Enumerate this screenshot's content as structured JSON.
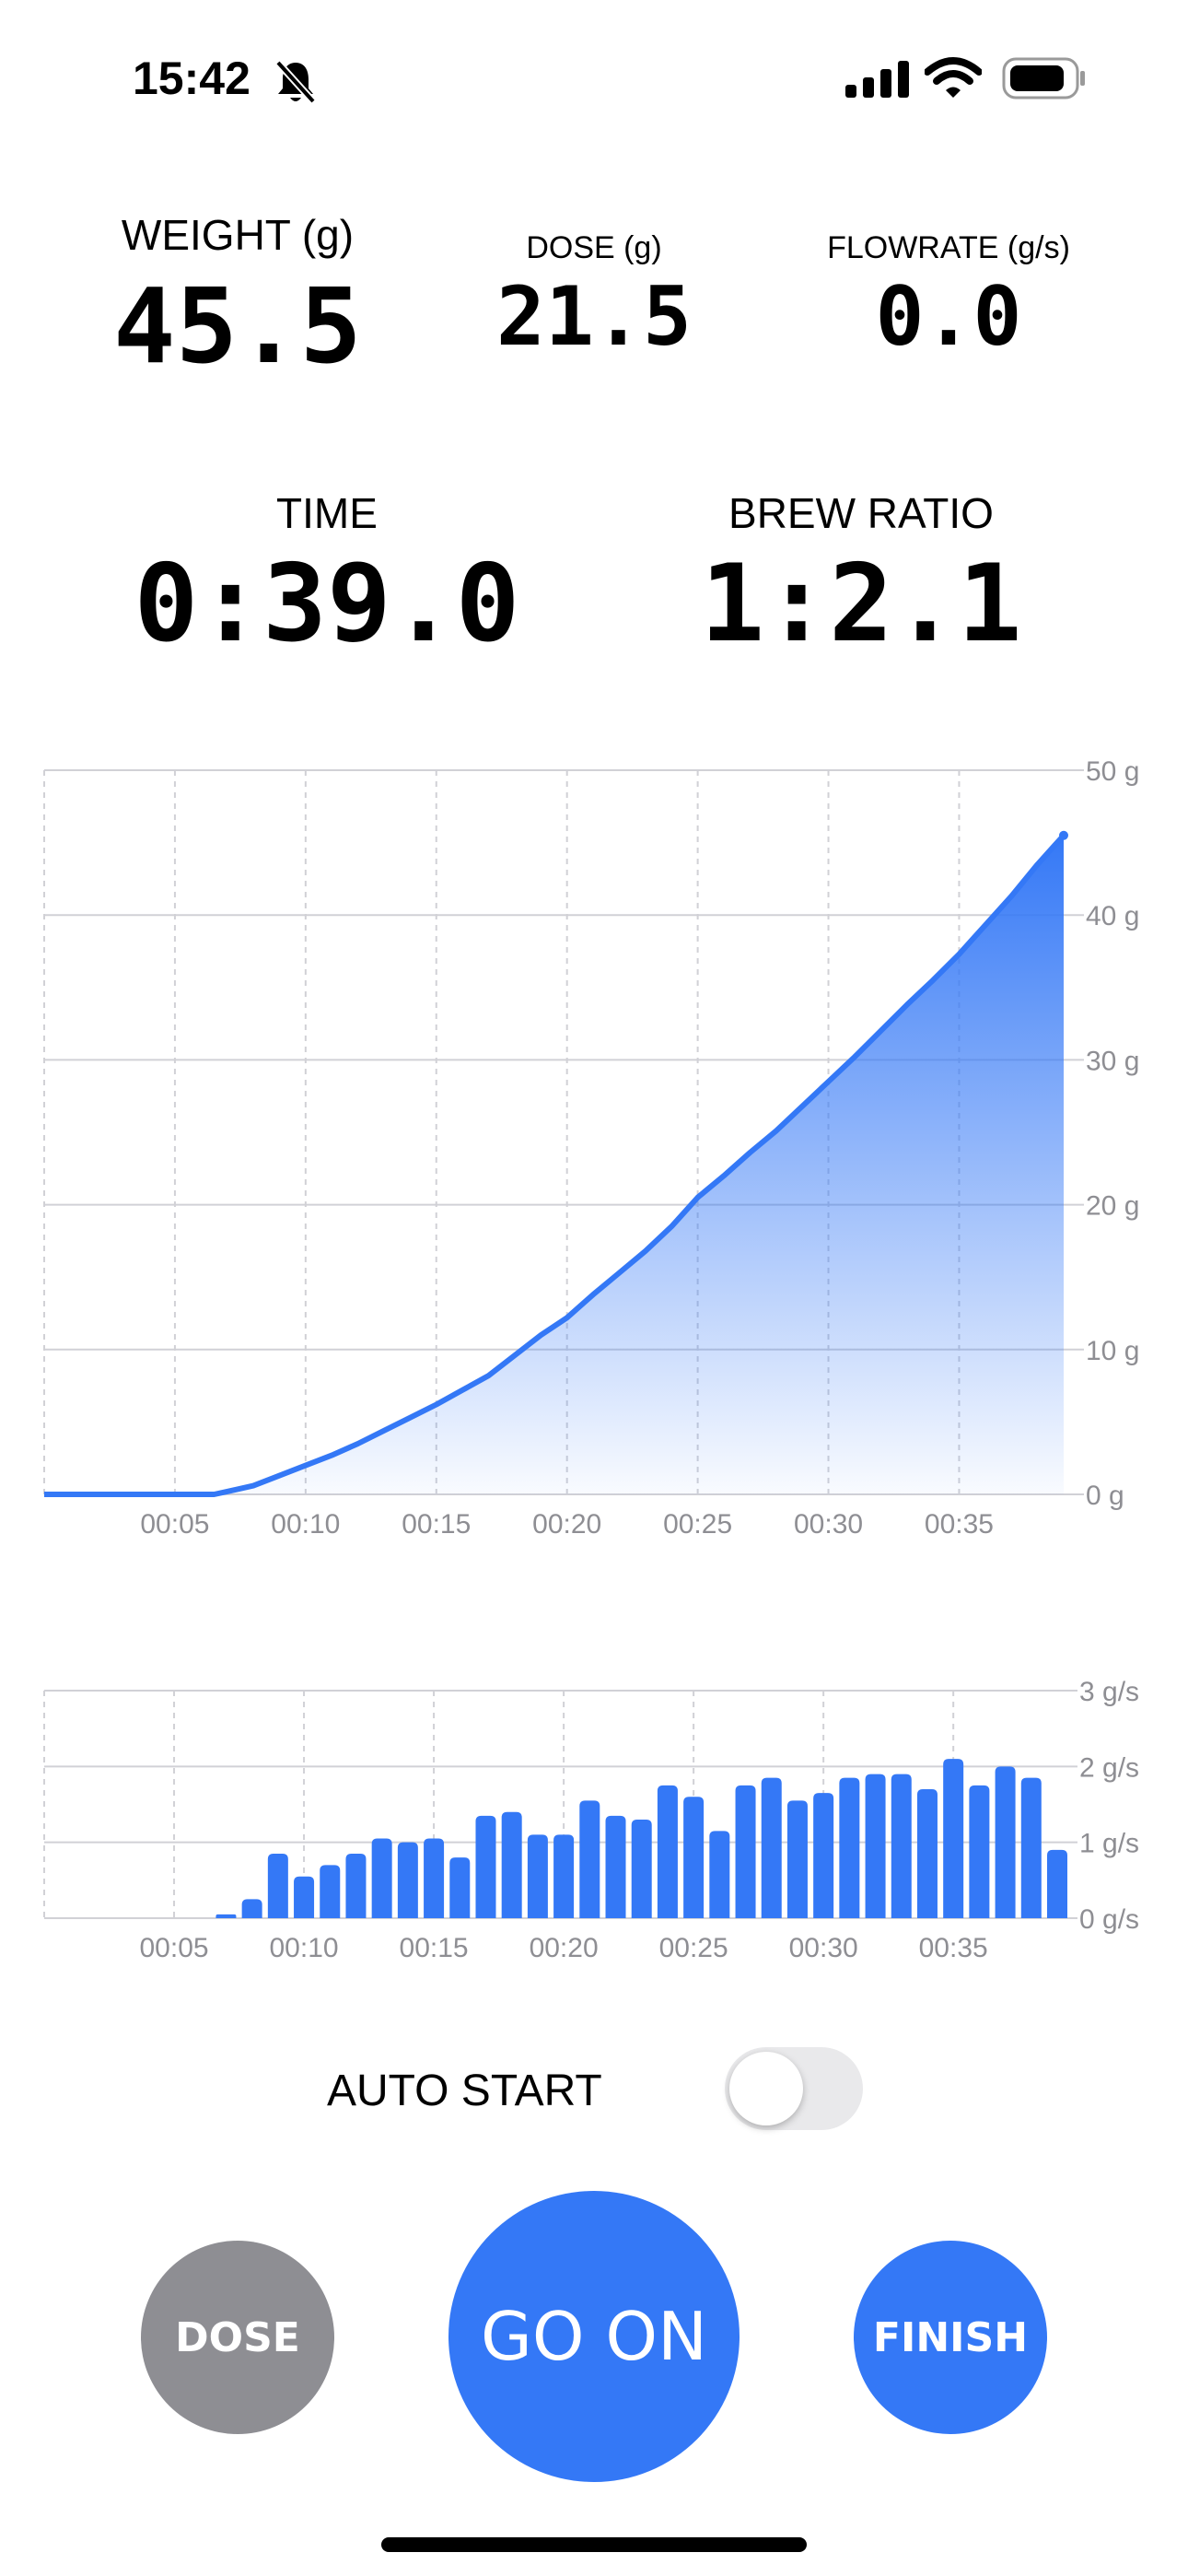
{
  "status_bar": {
    "time": "15:42"
  },
  "stats": {
    "weight_label": "WEIGHT (g)",
    "weight_value": "45.5",
    "dose_label": "DOSE (g)",
    "dose_value": "21.5",
    "flow_label": "FLOWRATE (g/s)",
    "flow_value": "0.0",
    "time_label": "TIME",
    "time_value": "0:39.0",
    "ratio_label": "BREW RATIO",
    "ratio_value": "1:2.1"
  },
  "controls": {
    "auto_start_label": "AUTO START",
    "auto_start_on": false,
    "dose_button": "DOSE",
    "go_on_button": "GO ON",
    "finish_button": "FINISH"
  },
  "colors": {
    "accent": "#3478F6",
    "gray_button": "#8E8E93"
  },
  "chart_data": [
    {
      "type": "area",
      "ylim": [
        0,
        50
      ],
      "xlim": [
        0,
        39
      ],
      "y_ticks": [
        "0 g",
        "10 g",
        "20 g",
        "30 g",
        "40 g",
        "50 g"
      ],
      "x_ticks": [
        "00:05",
        "00:10",
        "00:15",
        "00:20",
        "00:25",
        "00:30",
        "00:35"
      ],
      "x": [
        0,
        6.5,
        7,
        8,
        9,
        10,
        11,
        12,
        13,
        14,
        15,
        16,
        17,
        18,
        19,
        20,
        21,
        22,
        23,
        24,
        25,
        26,
        27,
        28,
        29,
        30,
        31,
        32,
        33,
        34,
        35,
        36,
        37,
        38,
        39
      ],
      "y": [
        0,
        0,
        0.2,
        0.6,
        1.3,
        2.0,
        2.7,
        3.5,
        4.4,
        5.3,
        6.2,
        7.2,
        8.2,
        9.6,
        11.0,
        12.2,
        13.8,
        15.3,
        16.8,
        18.5,
        20.5,
        22.0,
        23.6,
        25.1,
        26.8,
        28.5,
        30.2,
        32.0,
        33.8,
        35.5,
        37.3,
        39.3,
        41.3,
        43.5,
        45.5
      ],
      "grid": true
    },
    {
      "type": "bar",
      "ylim": [
        0,
        3
      ],
      "xlim": [
        0,
        39
      ],
      "y_ticks": [
        "0 g/s",
        "1 g/s",
        "2 g/s",
        "3 g/s"
      ],
      "x_ticks": [
        "00:05",
        "00:10",
        "00:15",
        "00:20",
        "00:25",
        "00:30",
        "00:35"
      ],
      "x": [
        7,
        8,
        9,
        10,
        11,
        12,
        13,
        14,
        15,
        16,
        17,
        18,
        19,
        20,
        21,
        22,
        23,
        24,
        25,
        26,
        27,
        28,
        29,
        30,
        31,
        32,
        33,
        34,
        35,
        36,
        37,
        38,
        39
      ],
      "values": [
        0.05,
        0.25,
        0.85,
        0.55,
        0.7,
        0.85,
        1.05,
        1.0,
        1.05,
        0.8,
        1.35,
        1.4,
        1.1,
        1.1,
        1.55,
        1.35,
        1.3,
        1.75,
        1.6,
        1.15,
        1.75,
        1.85,
        1.55,
        1.65,
        1.85,
        1.9,
        1.9,
        1.7,
        2.1,
        1.75,
        2.0,
        1.85,
        0.9
      ],
      "grid": true
    }
  ]
}
